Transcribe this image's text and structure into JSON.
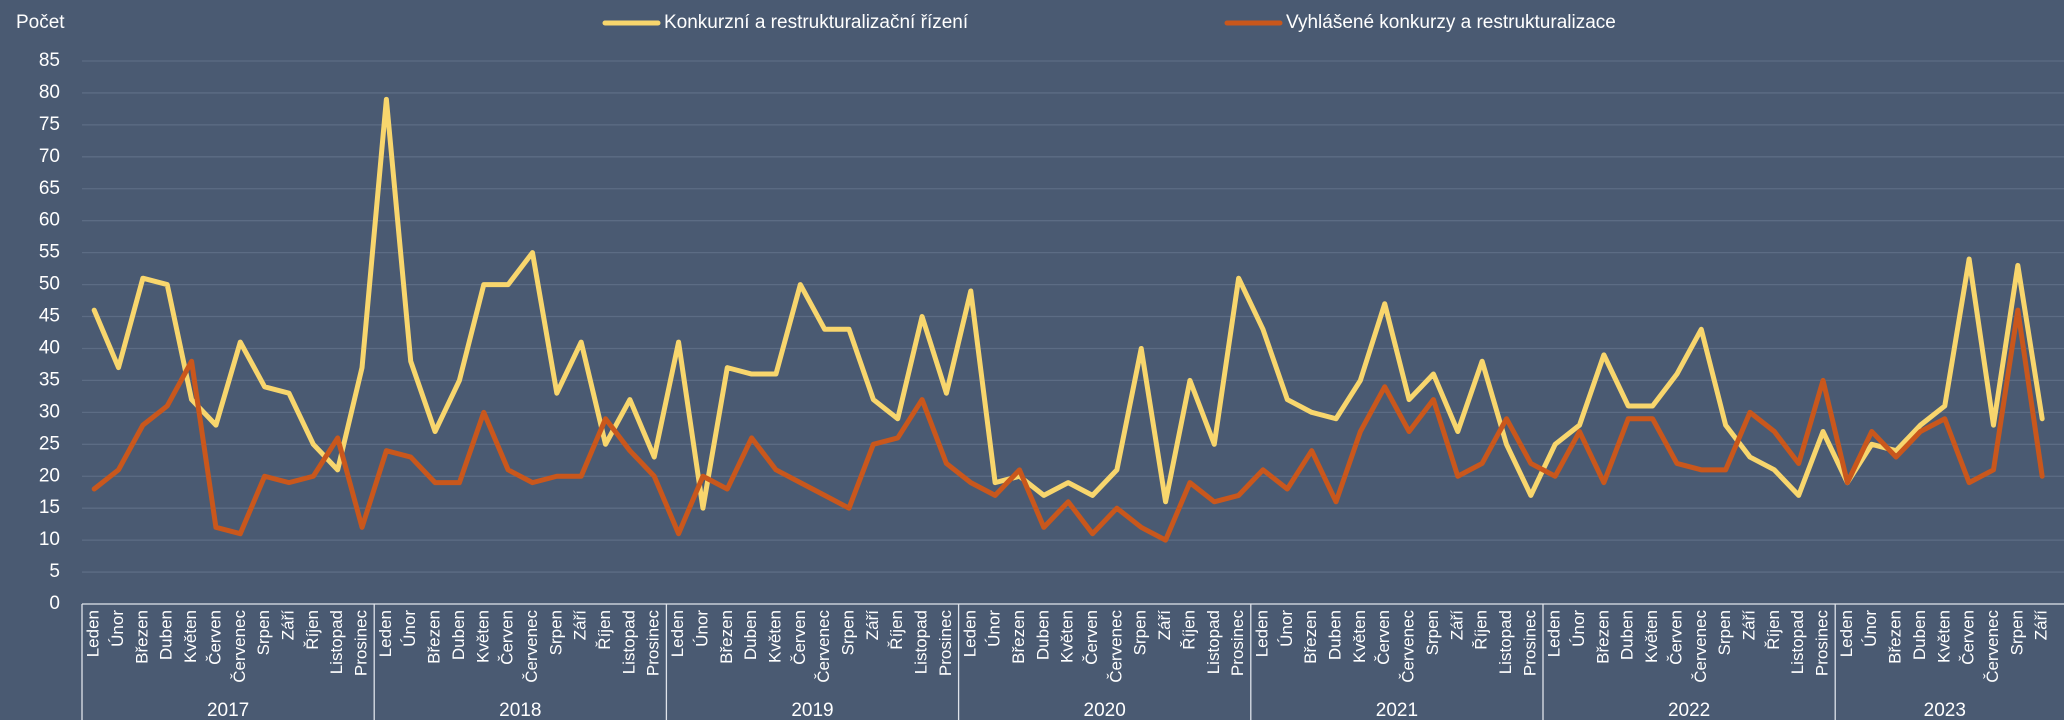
{
  "chart_data": {
    "type": "line",
    "y_label": "Počet",
    "categories": [
      "Leden",
      "Únor",
      "Březen",
      "Duben",
      "Květen",
      "Červen",
      "Červenec",
      "Srpen",
      "Září",
      "Říjen",
      "Listopad",
      "Prosinec",
      "Leden",
      "Únor",
      "Březen",
      "Duben",
      "Květen",
      "Červen",
      "Červenec",
      "Srpen",
      "Září",
      "Říjen",
      "Listopad",
      "Prosinec",
      "Leden",
      "Únor",
      "Březen",
      "Duben",
      "Květen",
      "Červen",
      "Červenec",
      "Srpen",
      "Září",
      "Říjen",
      "Listopad",
      "Prosinec",
      "Leden",
      "Únor",
      "Březen",
      "Duben",
      "Květen",
      "Červen",
      "Červenec",
      "Srpen",
      "Září",
      "Říjen",
      "Listopad",
      "Prosinec",
      "Leden",
      "Únor",
      "Březen",
      "Duben",
      "Květen",
      "Červen",
      "Červenec",
      "Srpen",
      "Září",
      "Říjen",
      "Listopad",
      "Prosinec",
      "Leden",
      "Únor",
      "Březen",
      "Duben",
      "Květen",
      "Červen",
      "Červenec",
      "Srpen",
      "Září",
      "Říjen",
      "Listopad",
      "Prosinec",
      "Leden",
      "Únor",
      "Březen",
      "Duben",
      "Květen",
      "Červen",
      "Červenec",
      "Srpen",
      "Září"
    ],
    "groups": [
      "2017",
      "2018",
      "2019",
      "2020",
      "2021",
      "2022",
      "2023"
    ],
    "series": [
      {
        "name": "Konkurzní a restrukturalizační řízení",
        "color": "#f8d66d",
        "values": [
          46,
          37,
          51,
          50,
          32,
          28,
          41,
          34,
          33,
          25,
          21,
          37,
          79,
          38,
          27,
          35,
          50,
          50,
          55,
          33,
          41,
          25,
          32,
          23,
          41,
          15,
          37,
          36,
          36,
          50,
          43,
          43,
          32,
          29,
          45,
          33,
          49,
          19,
          20,
          17,
          19,
          17,
          21,
          40,
          16,
          35,
          25,
          51,
          43,
          32,
          30,
          29,
          35,
          47,
          32,
          36,
          27,
          38,
          25,
          17,
          25,
          28,
          39,
          31,
          31,
          36,
          43,
          28,
          23,
          21,
          17,
          27,
          19,
          25,
          24,
          28,
          31,
          54,
          28,
          53,
          29
        ]
      },
      {
        "name": "Vyhlášené konkurzy a restrukturalizace",
        "color": "#c9571c",
        "values": [
          18,
          21,
          28,
          31,
          38,
          12,
          11,
          20,
          19,
          20,
          26,
          12,
          24,
          23,
          19,
          19,
          30,
          21,
          19,
          20,
          20,
          29,
          24,
          20,
          11,
          20,
          18,
          26,
          21,
          19,
          17,
          15,
          25,
          26,
          32,
          22,
          19,
          17,
          21,
          12,
          16,
          11,
          15,
          12,
          10,
          19,
          16,
          17,
          21,
          18,
          24,
          16,
          27,
          34,
          27,
          32,
          20,
          22,
          29,
          22,
          20,
          27,
          19,
          29,
          29,
          22,
          21,
          21,
          30,
          27,
          22,
          35,
          19,
          27,
          23,
          27,
          29,
          19,
          21,
          46,
          20
        ]
      }
    ],
    "ylim": [
      0,
      85
    ],
    "yticks": [
      0,
      5,
      10,
      15,
      20,
      25,
      30,
      35,
      40,
      45,
      50,
      55,
      60,
      65,
      70,
      75,
      80,
      85
    ],
    "grid": true,
    "legend": "top"
  }
}
